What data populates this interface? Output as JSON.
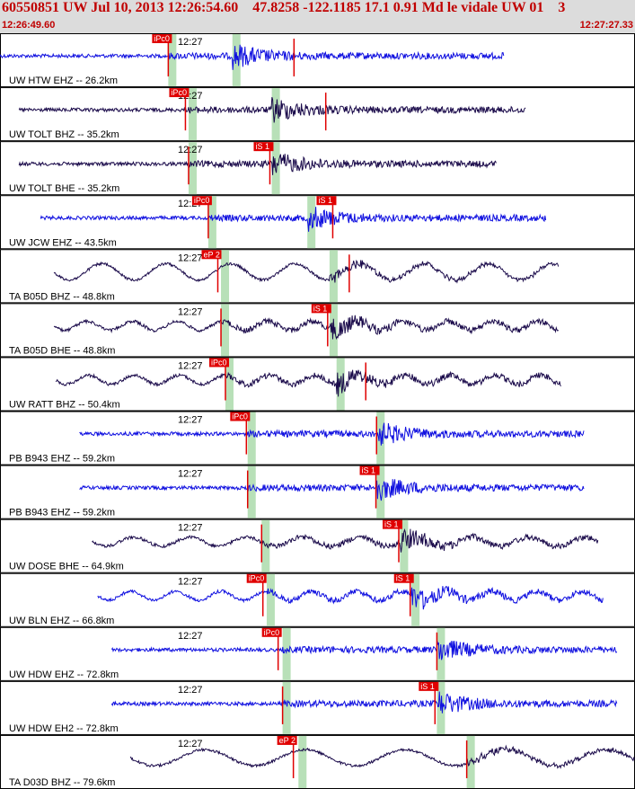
{
  "header": {
    "title": "60550851 UW Jul 10, 2013 12:26:54.60    47.8258 -122.1185 17.1 0.91 Md le vidale UW 01    3",
    "time_start": "12:26:49.60",
    "time_end": "12:27:27.33",
    "background_color": "#dcdcdc",
    "text_color": "#c00000"
  },
  "colors": {
    "trace_blue": "#1010e0",
    "trace_dark": "#1a0a4a",
    "pick_red": "#e00000",
    "window_green": "#b8e0b8"
  },
  "panels": [
    {
      "label": "UW HTW EHZ -- 26.2km",
      "tick": "12:27",
      "color": "blue",
      "start": 0.0,
      "end": 0.794,
      "arr": 0.366,
      "pA": {
        "label": "iPc0",
        "pos": 0.265,
        "green": 0.265
      },
      "pB": {
        "label": "",
        "pos": 0.463,
        "green": 0.366
      },
      "mode": "hf",
      "freq": 0.7
    },
    {
      "label": "UW TOLT BHZ -- 35.2km",
      "tick": "12:27",
      "color": "dark",
      "start": 0.03,
      "end": 0.828,
      "arr": 0.428,
      "pA": {
        "label": "iPc0",
        "pos": 0.292,
        "green": 0.297
      },
      "pB": {
        "label": "",
        "pos": 0.513,
        "green": 0.428
      },
      "mode": "hf",
      "freq": 0.55
    },
    {
      "label": "UW TOLT BHE -- 35.2km",
      "tick": "12:27",
      "color": "dark",
      "start": 0.03,
      "end": 0.782,
      "arr": 0.428,
      "pA": {
        "label": "",
        "pos": 0.297,
        "green": 0.297
      },
      "pB": {
        "label": "iS 1",
        "pos": 0.425,
        "green": 0.428
      },
      "mode": "hf",
      "freq": 0.55
    },
    {
      "label": "UW JCW EHZ -- 43.5km",
      "tick": "12:27",
      "color": "blue",
      "start": 0.064,
      "end": 0.86,
      "arr": 0.484,
      "pA": {
        "label": "iPc0",
        "pos": 0.328,
        "green": 0.328
      },
      "pB": {
        "label": "iS 1",
        "pos": 0.524,
        "green": 0.484
      },
      "mode": "hf",
      "freq": 0.7
    },
    {
      "label": "TA B05D BHZ -- 48.8km",
      "tick": "12:27",
      "color": "dark",
      "start": 0.085,
      "end": 0.88,
      "arr": 0.519,
      "pA": {
        "label": "eP 2",
        "pos": 0.343,
        "green": 0.348
      },
      "pB": {
        "label": "",
        "pos": 0.55,
        "green": 0.519
      },
      "mode": "lf",
      "freq": 0.07
    },
    {
      "label": "TA B05D BHE -- 48.8km",
      "tick": "12:27",
      "color": "dark",
      "start": 0.085,
      "end": 0.88,
      "arr": 0.519,
      "pA": {
        "label": "",
        "pos": 0.348,
        "green": 0.348
      },
      "pB": {
        "label": "iS 1",
        "pos": 0.516,
        "green": 0.519
      },
      "mode": "mix",
      "freq": 0.1
    },
    {
      "label": "UW RATT BHZ -- 50.4km",
      "tick": "12:27",
      "color": "dark",
      "start": 0.088,
      "end": 0.884,
      "arr": 0.53,
      "pA": {
        "label": "iPc0",
        "pos": 0.355,
        "green": 0.355
      },
      "pB": {
        "label": "",
        "pos": 0.576,
        "green": 0.53
      },
      "mode": "mix",
      "freq": 0.1
    },
    {
      "label": "PB B943 EHZ -- 59.2km",
      "tick": "12:27",
      "color": "blue",
      "start": 0.125,
      "end": 0.92,
      "arr": 0.593,
      "pA": {
        "label": "iPc0",
        "pos": 0.388,
        "green": 0.39
      },
      "pB": {
        "label": "",
        "pos": 0.593,
        "green": 0.593
      },
      "mode": "hf",
      "freq": 0.7
    },
    {
      "label": "PB B943 EHZ -- 59.2km",
      "tick": "12:27",
      "color": "blue",
      "start": 0.125,
      "end": 0.92,
      "arr": 0.593,
      "pA": {
        "label": "",
        "pos": 0.39,
        "green": 0.39
      },
      "pB": {
        "label": "iS 1",
        "pos": 0.592,
        "green": 0.593
      },
      "mode": "hf",
      "freq": 0.7
    },
    {
      "label": "UW DOSE BHE -- 64.9km",
      "tick": "12:27",
      "color": "dark",
      "start": 0.145,
      "end": 0.942,
      "arr": 0.63,
      "pA": {
        "label": "",
        "pos": 0.412,
        "green": 0.412
      },
      "pB": {
        "label": "iS 1",
        "pos": 0.628,
        "green": 0.63
      },
      "mode": "mix",
      "freq": 0.08
    },
    {
      "label": "UW BLN EHZ -- 66.8km",
      "tick": "12:27",
      "color": "blue",
      "start": 0.154,
      "end": 0.95,
      "arr": 0.648,
      "pA": {
        "label": "iPc0",
        "pos": 0.414,
        "green": 0.42
      },
      "pB": {
        "label": "iS 1",
        "pos": 0.646,
        "green": 0.648
      },
      "mode": "mix",
      "freq": 0.1
    },
    {
      "label": "UW HDW EHZ -- 72.8km",
      "tick": "12:27",
      "color": "blue",
      "start": 0.176,
      "end": 0.972,
      "arr": 0.688,
      "pA": {
        "label": "iPc0",
        "pos": 0.438,
        "green": 0.445
      },
      "pB": {
        "label": "",
        "pos": 0.688,
        "green": 0.688
      },
      "mode": "hf",
      "freq": 0.7
    },
    {
      "label": "UW HDW EH2 -- 72.8km",
      "tick": "12:27",
      "color": "blue",
      "start": 0.176,
      "end": 0.972,
      "arr": 0.688,
      "pA": {
        "label": "",
        "pos": 0.445,
        "green": 0.445
      },
      "pB": {
        "label": "iS 1",
        "pos": 0.685,
        "green": 0.688
      },
      "mode": "hf",
      "freq": 0.7
    },
    {
      "label": "TA D03D BHZ -- 79.6km",
      "tick": "12:27",
      "color": "dark",
      "start": 0.205,
      "end": 1.0,
      "arr": 0.735,
      "pA": {
        "label": "eP 2",
        "pos": 0.462,
        "green": 0.47
      },
      "pB": {
        "label": "",
        "pos": 0.735,
        "green": 0.735
      },
      "mode": "lf",
      "freq": 0.045
    }
  ]
}
